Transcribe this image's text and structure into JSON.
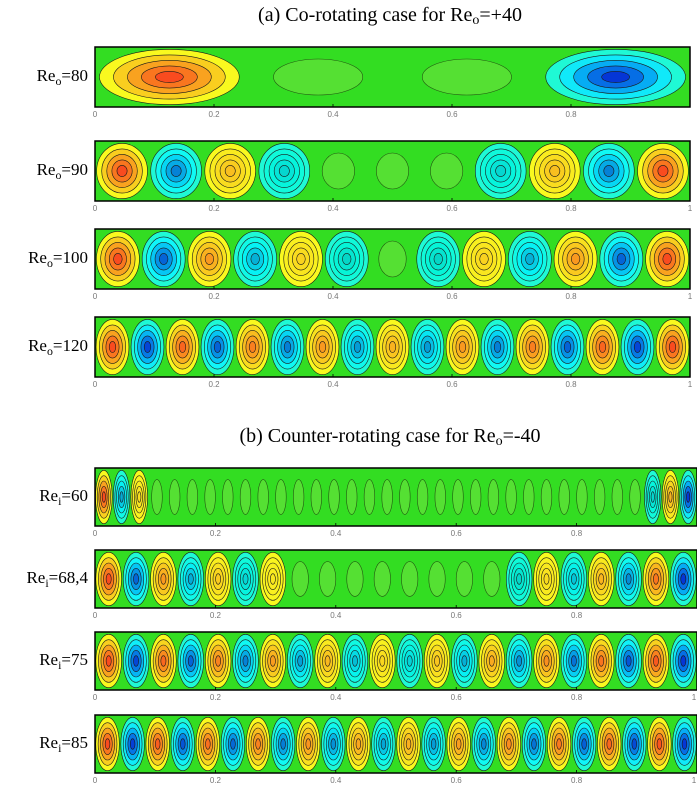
{
  "sections": [
    {
      "title": {
        "text": "(a) Co-rotating case for Re",
        "sub": "o",
        "tail": "=+40"
      },
      "panels": [
        {
          "label": {
            "text": "Re",
            "sub": "o",
            "tail": "=80"
          },
          "xlim": [
            0,
            1
          ],
          "xticks": [
            0,
            0.2,
            0.4,
            0.6,
            0.8
          ]
        },
        {
          "label": {
            "text": "Re",
            "sub": "o",
            "tail": "=90"
          },
          "xlim": [
            0,
            1
          ],
          "xticks": [
            0,
            0.2,
            0.4,
            0.6,
            0.8,
            1
          ]
        },
        {
          "label": {
            "text": "Re",
            "sub": "o",
            "tail": "=100"
          },
          "xlim": [
            0,
            1
          ],
          "xticks": [
            0,
            0.2,
            0.4,
            0.6,
            0.8,
            1
          ]
        },
        {
          "label": {
            "text": "Re",
            "sub": "o",
            "tail": "=120"
          },
          "xlim": [
            0,
            1
          ],
          "xticks": [
            0,
            0.2,
            0.4,
            0.6,
            0.8,
            1
          ]
        }
      ]
    },
    {
      "title": {
        "text": "(b) Counter-rotating case for Re",
        "sub": "o",
        "tail": "=-40"
      },
      "panels": [
        {
          "label": {
            "text": "Re",
            "sub": "i",
            "tail": "=60"
          },
          "xlim": [
            0,
            1
          ],
          "xticks": [
            0,
            0.2,
            0.4,
            0.6,
            0.8
          ]
        },
        {
          "label": {
            "text": "Re",
            "sub": "i",
            "tail": "=68,4"
          },
          "xlim": [
            0,
            1
          ],
          "xticks": [
            0,
            0.2,
            0.4,
            0.6,
            0.8
          ]
        },
        {
          "label": {
            "text": "Re",
            "sub": "i",
            "tail": "=75"
          },
          "xlim": [
            0,
            1
          ],
          "xticks": [
            0,
            0.2,
            0.4,
            0.6,
            0.8,
            1
          ]
        },
        {
          "label": {
            "text": "Re",
            "sub": "i",
            "tail": "=85"
          },
          "xlim": [
            0,
            1
          ],
          "xticks": [
            0,
            0.2,
            0.4,
            0.6,
            0.8,
            1
          ]
        }
      ]
    }
  ]
}
